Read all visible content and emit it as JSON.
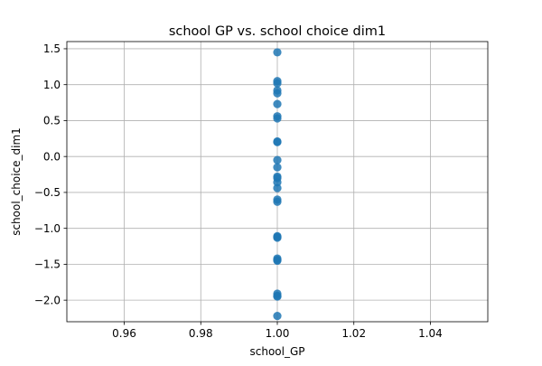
{
  "chart_data": {
    "type": "scatter",
    "title": "school GP vs. school choice dim1",
    "xlabel": "school_GP",
    "ylabel": "school_choice_dim1",
    "xlim": [
      0.945,
      1.055
    ],
    "ylim": [
      -2.3,
      1.6
    ],
    "xticks": [
      0.96,
      0.98,
      1.0,
      1.02,
      1.04
    ],
    "xtick_labels": [
      "0.96",
      "0.98",
      "1.00",
      "1.02",
      "1.04"
    ],
    "yticks": [
      -2.0,
      -1.5,
      -1.0,
      -0.5,
      0.0,
      0.5,
      1.0,
      1.5
    ],
    "ytick_labels": [
      "−2.0",
      "−1.5",
      "−1.0",
      "−0.5",
      "0.0",
      "0.5",
      "1.0",
      "1.5"
    ],
    "grid": true,
    "marker_color": "#1f77b4",
    "series": [
      {
        "x": [
          1,
          1,
          1,
          1,
          1,
          1,
          1,
          1,
          1,
          1,
          1,
          1,
          1,
          1,
          1,
          1,
          1,
          1,
          1,
          1,
          1,
          1,
          1,
          1,
          1,
          1,
          1,
          1
        ],
        "y": [
          1.45,
          1.05,
          1.02,
          0.92,
          0.88,
          0.73,
          0.56,
          0.53,
          0.21,
          0.2,
          -0.05,
          -0.15,
          -0.28,
          -0.3,
          -0.36,
          -0.44,
          -0.6,
          -0.63,
          -1.11,
          -1.12,
          -1.13,
          -1.42,
          -1.44,
          -1.45,
          -1.91,
          -1.94,
          -1.95,
          -2.22
        ]
      }
    ]
  }
}
